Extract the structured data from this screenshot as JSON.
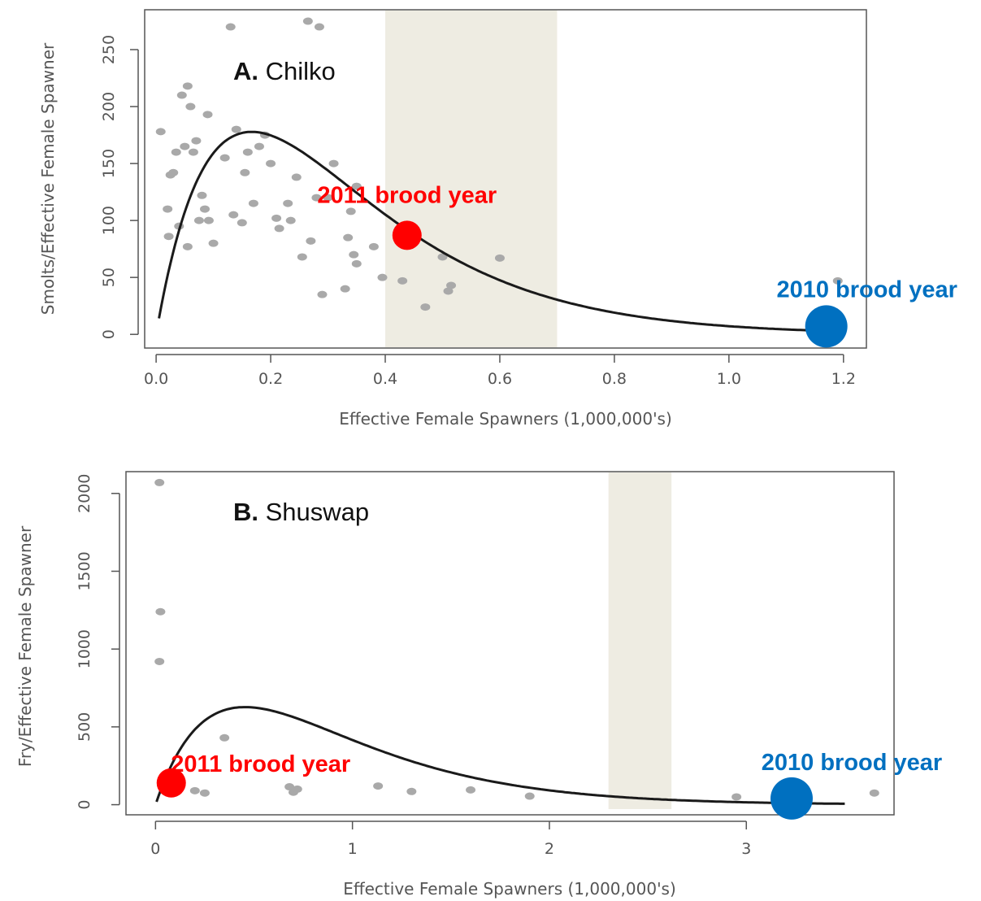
{
  "chart_data": [
    {
      "type": "scatter",
      "panel_letter": "A.",
      "title": "Chilko",
      "xlabel": "Effective Female Spawners (1,000,000's)",
      "ylabel": "Smolts/Effective Female Spawner",
      "xlim": [
        -0.02,
        1.24
      ],
      "ylim": [
        -12,
        285
      ],
      "xticks": [
        "0.0",
        "0.2",
        "0.4",
        "0.6",
        "0.8",
        "1.0",
        "1.2"
      ],
      "xtick_values": [
        0,
        0.2,
        0.4,
        0.6,
        0.8,
        1.0,
        1.2
      ],
      "yticks": [
        "0",
        "50",
        "100",
        "150",
        "200",
        "250"
      ],
      "ytick_values": [
        0,
        50,
        100,
        150,
        200,
        250
      ],
      "shade": [
        0.4,
        0.7
      ],
      "shade_color": "#eeece2",
      "point_color": "#a9a9a9",
      "curve": {
        "a": 2900,
        "b": 6,
        "xmin": 0.005,
        "xmax": 1.2
      },
      "points": [
        [
          0.008,
          178
        ],
        [
          0.02,
          110
        ],
        [
          0.025,
          140
        ],
        [
          0.022,
          86
        ],
        [
          0.03,
          142
        ],
        [
          0.035,
          160
        ],
        [
          0.04,
          95
        ],
        [
          0.045,
          210
        ],
        [
          0.05,
          165
        ],
        [
          0.055,
          218
        ],
        [
          0.055,
          77
        ],
        [
          0.06,
          200
        ],
        [
          0.065,
          160
        ],
        [
          0.07,
          170
        ],
        [
          0.075,
          100
        ],
        [
          0.08,
          122
        ],
        [
          0.085,
          110
        ],
        [
          0.09,
          193
        ],
        [
          0.092,
          100
        ],
        [
          0.1,
          80
        ],
        [
          0.12,
          155
        ],
        [
          0.13,
          270
        ],
        [
          0.135,
          105
        ],
        [
          0.14,
          180
        ],
        [
          0.15,
          98
        ],
        [
          0.155,
          142
        ],
        [
          0.16,
          160
        ],
        [
          0.17,
          115
        ],
        [
          0.18,
          165
        ],
        [
          0.19,
          175
        ],
        [
          0.2,
          150
        ],
        [
          0.21,
          102
        ],
        [
          0.215,
          93
        ],
        [
          0.23,
          115
        ],
        [
          0.235,
          100
        ],
        [
          0.245,
          138
        ],
        [
          0.255,
          68
        ],
        [
          0.265,
          275
        ],
        [
          0.27,
          82
        ],
        [
          0.28,
          120
        ],
        [
          0.285,
          270
        ],
        [
          0.29,
          35
        ],
        [
          0.3,
          120
        ],
        [
          0.31,
          150
        ],
        [
          0.33,
          40
        ],
        [
          0.335,
          85
        ],
        [
          0.34,
          108
        ],
        [
          0.345,
          70
        ],
        [
          0.35,
          62
        ],
        [
          0.35,
          130
        ],
        [
          0.38,
          77
        ],
        [
          0.395,
          50
        ],
        [
          0.43,
          47
        ],
        [
          0.445,
          87
        ],
        [
          0.47,
          24
        ],
        [
          0.5,
          68
        ],
        [
          0.51,
          38
        ],
        [
          0.515,
          43
        ],
        [
          0.6,
          67
        ],
        [
          1.17,
          5
        ],
        [
          1.19,
          47
        ]
      ],
      "highlights": [
        {
          "label": "2011 brood year",
          "x": 0.438,
          "y": 87,
          "color": "#ff0000"
        },
        {
          "label": "2010 brood year",
          "x": 1.17,
          "y": 7,
          "color": "#0070c0"
        }
      ]
    },
    {
      "type": "scatter",
      "panel_letter": "B.",
      "title": "Shuswap",
      "xlabel": "Effective Female Spawners (1,000,000's)",
      "ylabel": "Fry/Effective Female Spawner",
      "xlim": [
        -0.15,
        3.75
      ],
      "ylim": [
        -65,
        2140
      ],
      "xticks": [
        "0",
        "1",
        "2",
        "3"
      ],
      "xtick_values": [
        0,
        1,
        2,
        3
      ],
      "yticks": [
        "0",
        "500",
        "1000",
        "1500",
        "2000"
      ],
      "ytick_values": [
        0,
        500,
        1000,
        1500,
        2000
      ],
      "shade": [
        2.3,
        2.62
      ],
      "shade_color": "#eeece2",
      "point_color": "#a9a9a9",
      "curve": {
        "a": 3750,
        "b": 2.2,
        "xmin": 0.005,
        "xmax": 3.5
      },
      "points": [
        [
          0.02,
          2070
        ],
        [
          0.02,
          920
        ],
        [
          0.025,
          1240
        ],
        [
          0.2,
          90
        ],
        [
          0.25,
          75
        ],
        [
          0.35,
          430
        ],
        [
          0.68,
          115
        ],
        [
          0.7,
          80
        ],
        [
          0.72,
          100
        ],
        [
          1.13,
          120
        ],
        [
          1.3,
          85
        ],
        [
          1.6,
          95
        ],
        [
          1.9,
          55
        ],
        [
          2.95,
          50
        ],
        [
          3.65,
          75
        ]
      ],
      "highlights": [
        {
          "label": "2011 brood year",
          "x": 0.08,
          "y": 140,
          "color": "#ff0000"
        },
        {
          "label": "2010 brood year",
          "x": 3.23,
          "y": 40,
          "color": "#0070c0"
        }
      ]
    }
  ]
}
